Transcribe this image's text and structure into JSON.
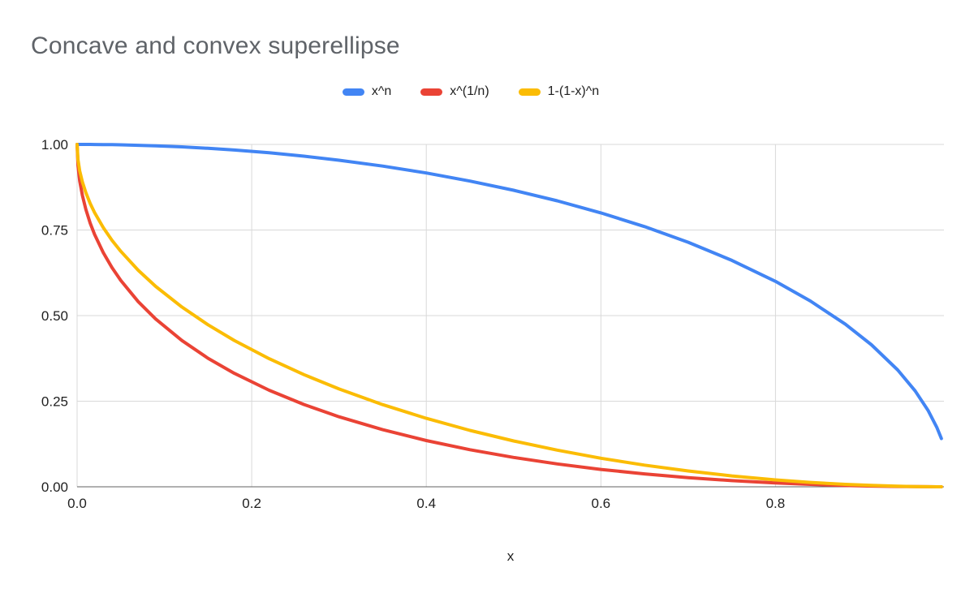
{
  "chart_data": {
    "type": "line",
    "title": "Concave and convex superellipse",
    "xlabel": "x",
    "ylabel": "",
    "xlim": [
      0,
      0.993
    ],
    "ylim": [
      0,
      1
    ],
    "grid": true,
    "legend_position": "top",
    "grid_color": "#d9d9d9",
    "axis_line_color": "#616161",
    "x_ticks": [
      {
        "v": 0.0,
        "label": "0.0"
      },
      {
        "v": 0.2,
        "label": "0.2"
      },
      {
        "v": 0.4,
        "label": "0.4"
      },
      {
        "v": 0.6,
        "label": "0.6"
      },
      {
        "v": 0.8,
        "label": "0.8"
      }
    ],
    "y_ticks": [
      {
        "v": 0.0,
        "label": "0.00"
      },
      {
        "v": 0.25,
        "label": "0.25"
      },
      {
        "v": 0.5,
        "label": "0.50"
      },
      {
        "v": 0.75,
        "label": "0.75"
      },
      {
        "v": 1.0,
        "label": "1.00"
      }
    ],
    "series": [
      {
        "name": "x^n",
        "color": "#4285f4",
        "points": [
          [
            0,
            1
          ],
          [
            0.001,
            1
          ],
          [
            0.003,
            1
          ],
          [
            0.006,
            1
          ],
          [
            0.01,
            0.9999
          ],
          [
            0.015,
            0.9999
          ],
          [
            0.02,
            0.9998
          ],
          [
            0.03,
            0.9995
          ],
          [
            0.04,
            0.9992
          ],
          [
            0.05,
            0.9987
          ],
          [
            0.07,
            0.9975
          ],
          [
            0.09,
            0.9959
          ],
          [
            0.12,
            0.9928
          ],
          [
            0.15,
            0.9887
          ],
          [
            0.18,
            0.9837
          ],
          [
            0.22,
            0.9755
          ],
          [
            0.26,
            0.9656
          ],
          [
            0.3,
            0.9539
          ],
          [
            0.35,
            0.9367
          ],
          [
            0.4,
            0.9165
          ],
          [
            0.45,
            0.893
          ],
          [
            0.5,
            0.866
          ],
          [
            0.55,
            0.8352
          ],
          [
            0.6,
            0.8
          ],
          [
            0.65,
            0.7599
          ],
          [
            0.7,
            0.7141
          ],
          [
            0.75,
            0.6614
          ],
          [
            0.8,
            0.6
          ],
          [
            0.84,
            0.5426
          ],
          [
            0.88,
            0.475
          ],
          [
            0.91,
            0.4146
          ],
          [
            0.94,
            0.3412
          ],
          [
            0.96,
            0.28
          ],
          [
            0.975,
            0.2222
          ],
          [
            0.985,
            0.1725
          ],
          [
            0.99,
            0.1411
          ]
        ]
      },
      {
        "name": "x^(1/n)",
        "color": "#ea4335",
        "points": [
          [
            0,
            1
          ],
          [
            0.001,
            0.9378
          ],
          [
            0.003,
            0.8934
          ],
          [
            0.006,
            0.8511
          ],
          [
            0.01,
            0.81
          ],
          [
            0.015,
            0.7701
          ],
          [
            0.02,
            0.7372
          ],
          [
            0.03,
            0.6836
          ],
          [
            0.04,
            0.64
          ],
          [
            0.05,
            0.6028
          ],
          [
            0.07,
            0.5408
          ],
          [
            0.09,
            0.49
          ],
          [
            0.12,
            0.4272
          ],
          [
            0.15,
            0.3754
          ],
          [
            0.18,
            0.3315
          ],
          [
            0.22,
            0.2819
          ],
          [
            0.26,
            0.2402
          ],
          [
            0.3,
            0.2046
          ],
          [
            0.35,
            0.1668
          ],
          [
            0.4,
            0.1351
          ],
          [
            0.45,
            0.1084
          ],
          [
            0.5,
            0.0858
          ],
          [
            0.55,
            0.0668
          ],
          [
            0.6,
            0.0508
          ],
          [
            0.65,
            0.0376
          ],
          [
            0.7,
            0.0267
          ],
          [
            0.75,
            0.018
          ],
          [
            0.8,
            0.0111
          ],
          [
            0.84,
            0.007
          ],
          [
            0.88,
            0.0038
          ],
          [
            0.91,
            0.0021
          ],
          [
            0.94,
            0.0009
          ],
          [
            0.96,
            0.0004
          ],
          [
            0.975,
            0.0002
          ],
          [
            0.985,
            0.0001
          ],
          [
            0.99,
            0
          ]
        ]
      },
      {
        "name": "1-(1-x)^n",
        "color": "#fbbc04",
        "points": [
          [
            0,
            1
          ],
          [
            0.001,
            0.9553
          ],
          [
            0.003,
            0.9226
          ],
          [
            0.006,
            0.8906
          ],
          [
            0.01,
            0.8589
          ],
          [
            0.015,
            0.8274
          ],
          [
            0.02,
            0.801
          ],
          [
            0.03,
            0.7569
          ],
          [
            0.04,
            0.72
          ],
          [
            0.05,
            0.6878
          ],
          [
            0.07,
            0.6324
          ],
          [
            0.09,
            0.5854
          ],
          [
            0.12,
            0.525
          ],
          [
            0.15,
            0.4732
          ],
          [
            0.18,
            0.4276
          ],
          [
            0.22,
            0.3742
          ],
          [
            0.26,
            0.3274
          ],
          [
            0.3,
            0.2859
          ],
          [
            0.35,
            0.2401
          ],
          [
            0.4,
            0.2
          ],
          [
            0.45,
            0.1648
          ],
          [
            0.5,
            0.134
          ],
          [
            0.55,
            0.107
          ],
          [
            0.6,
            0.0835
          ],
          [
            0.65,
            0.0632
          ],
          [
            0.7,
            0.0461
          ],
          [
            0.75,
            0.0318
          ],
          [
            0.8,
            0.0202
          ],
          [
            0.84,
            0.0129
          ],
          [
            0.88,
            0.0072
          ],
          [
            0.91,
            0.0041
          ],
          [
            0.94,
            0.0018
          ],
          [
            0.96,
            0.0008
          ],
          [
            0.975,
            0.0003
          ],
          [
            0.985,
            0.0001
          ],
          [
            0.99,
            0
          ]
        ]
      }
    ]
  }
}
